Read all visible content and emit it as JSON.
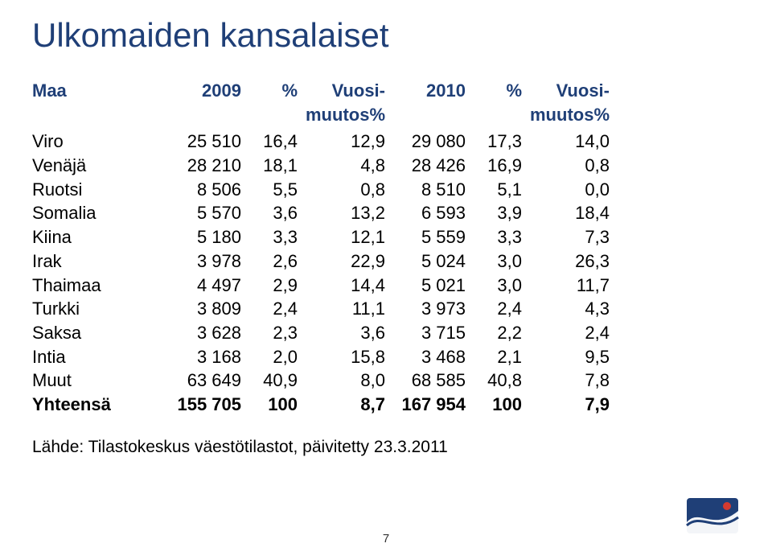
{
  "title": {
    "text": "Ulkomaiden kansalaiset",
    "color": "#1f3f77"
  },
  "header_color": "#1f3f77",
  "columns": [
    "Maa",
    "2009",
    "%",
    "Vuosi-\nmuutos%",
    "2010",
    "%",
    "Vuosi-\nmuutos%"
  ],
  "rows": [
    [
      "Viro",
      "25 510",
      "16,4",
      "12,9",
      "29 080",
      "17,3",
      "14,0"
    ],
    [
      "Venäjä",
      "28 210",
      "18,1",
      "4,8",
      "28 426",
      "16,9",
      "0,8"
    ],
    [
      "Ruotsi",
      "8 506",
      "5,5",
      "0,8",
      "8 510",
      "5,1",
      "0,0"
    ],
    [
      "Somalia",
      "5 570",
      "3,6",
      "13,2",
      "6 593",
      "3,9",
      "18,4"
    ],
    [
      "Kiina",
      "5 180",
      "3,3",
      "12,1",
      "5 559",
      "3,3",
      "7,3"
    ],
    [
      "Irak",
      "3 978",
      "2,6",
      "22,9",
      "5 024",
      "3,0",
      "26,3"
    ],
    [
      "Thaimaa",
      "4 497",
      "2,9",
      "14,4",
      "5 021",
      "3,0",
      "11,7"
    ],
    [
      "Turkki",
      "3 809",
      "2,4",
      "11,1",
      "3 973",
      "2,4",
      "4,3"
    ],
    [
      "Saksa",
      "3 628",
      "2,3",
      "3,6",
      "3 715",
      "2,2",
      "2,4"
    ],
    [
      "Intia",
      "3 168",
      "2,0",
      "15,8",
      "3 468",
      "2,1",
      "9,5"
    ],
    [
      "Muut",
      "63 649",
      "40,9",
      "8,0",
      "68 585",
      "40,8",
      "7,8"
    ]
  ],
  "total_row": [
    "Yhteensä",
    "155 705",
    "100",
    "8,7",
    "167 954",
    "100",
    "7,9"
  ],
  "source": "Lähde: Tilastokeskus väestötilastot, päivitetty 23.3.2011",
  "page_number": "7",
  "logo": {
    "bg": "#1f3f77",
    "wave": "#ffffff",
    "accent": "#d43a2f"
  }
}
